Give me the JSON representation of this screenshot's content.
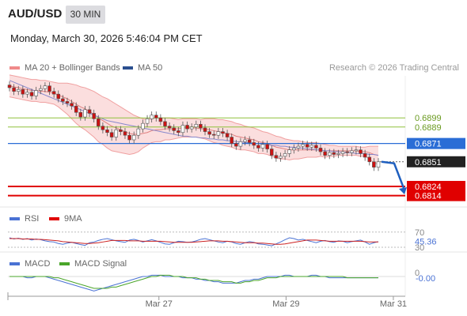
{
  "header": {
    "symbol": "AUD/USD",
    "timeframe": "30 MIN",
    "datetime": "Monday, March 30, 2026 5:46:04 PM CET",
    "credit": "Research © 2026 Trading Central"
  },
  "legend": {
    "bollinger_label": "MA 20 + Bollinger Bands",
    "ma50_label": "MA 50",
    "rsi_label": "RSI",
    "rsi_ma_label": "9MA",
    "macd_label": "MACD",
    "macd_signal_label": "MACD Signal"
  },
  "colors": {
    "bull": "#ffffff",
    "bear": "#cc1111",
    "bollinger": "#f0a0a0",
    "bollinger_fill": "#fbdede",
    "ma50": "#8888cc",
    "resistance": "#8fc13b",
    "pivot": "#2a6dd6",
    "support": "#e00000",
    "last": "#222222",
    "rsi": "#4a72d4",
    "rsi_ma": "#cc2222",
    "macd": "#4a72d4",
    "macd_signal": "#4aa52a"
  },
  "chart_data": [
    {
      "type": "candlestick",
      "title": "AUD/USD 30 MIN",
      "ylim": [
        0.6805,
        0.6945
      ],
      "x_ticks": [
        "Mar 27",
        "Mar 29",
        "Mar 31"
      ],
      "levels": [
        {
          "name": "resistance-2",
          "value": 0.6899,
          "label": "0.6899"
        },
        {
          "name": "resistance-1",
          "value": 0.6889,
          "label": "0.6889"
        },
        {
          "name": "pivot",
          "value": 0.6871,
          "label": "0.6871"
        },
        {
          "name": "support-1",
          "value": 0.6824,
          "label": "0.6824"
        },
        {
          "name": "support-2",
          "value": 0.6814,
          "label": "0.6814"
        }
      ],
      "last_price": {
        "value": 0.6851,
        "label": "0.6851"
      },
      "projection": {
        "from": 0.6851,
        "to": 0.6824
      },
      "closes": [
        0.6932,
        0.6928,
        0.693,
        0.6925,
        0.6927,
        0.6923,
        0.6929,
        0.6931,
        0.6934,
        0.6928,
        0.6925,
        0.692,
        0.6917,
        0.6915,
        0.6912,
        0.6905,
        0.69,
        0.6908,
        0.6904,
        0.6898,
        0.689,
        0.6886,
        0.6883,
        0.6878,
        0.6886,
        0.6884,
        0.688,
        0.6875,
        0.688,
        0.6887,
        0.6893,
        0.6898,
        0.6902,
        0.6899,
        0.6895,
        0.689,
        0.6888,
        0.6885,
        0.6883,
        0.6891,
        0.6887,
        0.6889,
        0.6892,
        0.6888,
        0.6884,
        0.6881,
        0.688,
        0.6884,
        0.6882,
        0.6878,
        0.6871,
        0.6868,
        0.6873,
        0.6875,
        0.6872,
        0.6869,
        0.6866,
        0.687,
        0.6865,
        0.6858,
        0.6855,
        0.6857,
        0.686,
        0.6864,
        0.6866,
        0.6868,
        0.687,
        0.6867,
        0.6869,
        0.6866,
        0.6862,
        0.6858,
        0.6861,
        0.6859,
        0.686,
        0.6862,
        0.6861,
        0.6863,
        0.6864,
        0.686,
        0.6856,
        0.6851,
        0.6845,
        0.6851
      ],
      "ma20": [
        0.6934,
        0.6933,
        0.6932,
        0.6931,
        0.693,
        0.6929,
        0.6929,
        0.6928,
        0.6928,
        0.6927,
        0.6926,
        0.6924,
        0.6922,
        0.692,
        0.6917,
        0.6914,
        0.6911,
        0.6909,
        0.6906,
        0.6903,
        0.6899,
        0.6896,
        0.6893,
        0.689,
        0.6888,
        0.6886,
        0.6884,
        0.6882,
        0.6881,
        0.6881,
        0.6882,
        0.6883,
        0.6885,
        0.6886,
        0.6886,
        0.6887,
        0.6887,
        0.6887,
        0.6887,
        0.6888,
        0.6888,
        0.6888,
        0.6888,
        0.6887,
        0.6887,
        0.6886,
        0.6885,
        0.6884,
        0.6883,
        0.6882,
        0.6881,
        0.6879,
        0.6878,
        0.6877,
        0.6876,
        0.6875,
        0.6873,
        0.6872,
        0.6871,
        0.6869,
        0.6867,
        0.6866,
        0.6865,
        0.6864,
        0.6864,
        0.6864,
        0.6864,
        0.6864,
        0.6864,
        0.6864,
        0.6864,
        0.6863,
        0.6863,
        0.6863,
        0.6863,
        0.6863,
        0.6863,
        0.6863,
        0.6863,
        0.6862,
        0.6862,
        0.6861,
        0.6859,
        0.6858
      ],
      "band_width": [
        0.0012,
        0.0012,
        0.0012,
        0.0012,
        0.0012,
        0.0012,
        0.0012,
        0.0012,
        0.0012,
        0.0012,
        0.0012,
        0.0013,
        0.0015,
        0.0017,
        0.0019,
        0.0021,
        0.0022,
        0.0023,
        0.0024,
        0.0025,
        0.0026,
        0.0026,
        0.0027,
        0.0027,
        0.0026,
        0.0025,
        0.0024,
        0.0023,
        0.0021,
        0.0019,
        0.0016,
        0.0014,
        0.0013,
        0.0013,
        0.0013,
        0.0012,
        0.0012,
        0.0011,
        0.001,
        0.001,
        0.001,
        0.001,
        0.001,
        0.001,
        0.0011,
        0.0012,
        0.0013,
        0.0013,
        0.0014,
        0.0014,
        0.0014,
        0.0014,
        0.0014,
        0.0013,
        0.0013,
        0.0013,
        0.0013,
        0.0012,
        0.0012,
        0.0012,
        0.0012,
        0.0012,
        0.0011,
        0.0011,
        0.001,
        0.001,
        0.0009,
        0.0008,
        0.0008,
        0.0008,
        0.0007,
        0.0007,
        0.0006,
        0.0006,
        0.0005,
        0.0005,
        0.0005,
        0.0005,
        0.0005,
        0.0005,
        0.0005,
        0.0007,
        0.0009,
        0.001
      ],
      "ma50": [
        0.694,
        0.6938,
        0.6936,
        0.6934,
        0.6932,
        0.693,
        0.6928,
        0.6926,
        0.6924,
        0.6922,
        0.692,
        0.6918,
        0.6916,
        0.6914,
        0.6912,
        0.691,
        0.6908,
        0.6906,
        0.6904,
        0.6902,
        0.69,
        0.6898,
        0.6896,
        0.6895,
        0.6894,
        0.6893,
        0.6892,
        0.6891,
        0.689,
        0.6889,
        0.6888,
        0.6887,
        0.6886,
        0.6885,
        0.6884,
        0.6883,
        0.6882,
        0.6881,
        0.688,
        0.6879,
        0.6879,
        0.6878,
        0.6878,
        0.6877,
        0.6877,
        0.6876,
        0.6876,
        0.6875,
        0.6875,
        0.6874,
        0.6874,
        0.6873,
        0.6873,
        0.6872,
        0.6872,
        0.6871,
        0.6871,
        0.687,
        0.687,
        0.6869,
        0.6869,
        0.6868,
        0.6868,
        0.6867,
        0.6867,
        0.6866,
        0.6866,
        0.6865,
        0.6865,
        0.6864,
        0.6864,
        0.6863,
        0.6863,
        0.6862,
        0.6862,
        0.6861,
        0.6861,
        0.6861,
        0.686,
        0.686,
        0.686,
        0.6859,
        0.6859,
        0.6858
      ]
    },
    {
      "type": "line",
      "title": "RSI",
      "ylim": [
        28,
        80
      ],
      "ticks": [
        {
          "value": 70,
          "label": "70"
        },
        {
          "value": 30,
          "label": "30"
        }
      ],
      "last": {
        "value": 45.36,
        "label": "45.36"
      },
      "series": [
        {
          "name": "RSI",
          "values": [
            55,
            52,
            54,
            51,
            53,
            49,
            52,
            50,
            47,
            45,
            44,
            40,
            38,
            41,
            43,
            40,
            37,
            35,
            42,
            44,
            48,
            51,
            53,
            50,
            47,
            45,
            43,
            49,
            51,
            48,
            44,
            47,
            50,
            47,
            43,
            39,
            38,
            42,
            46,
            45,
            43,
            44,
            47,
            51,
            53,
            50,
            47,
            44,
            42,
            46,
            44,
            40,
            38,
            42,
            45,
            43,
            39,
            38,
            36,
            34,
            39,
            44,
            50,
            55,
            53,
            49,
            51,
            48,
            45,
            42,
            46,
            48,
            45,
            43,
            47,
            46,
            42,
            45,
            47,
            49,
            44,
            38,
            42,
            45
          ]
        },
        {
          "name": "9MA",
          "values": [
            53,
            53,
            53,
            52,
            52,
            52,
            51,
            51,
            50,
            49,
            48,
            47,
            45,
            44,
            43,
            42,
            41,
            40,
            40,
            41,
            42,
            44,
            46,
            48,
            48,
            48,
            48,
            47,
            47,
            47,
            46,
            46,
            46,
            46,
            46,
            45,
            44,
            43,
            43,
            43,
            43,
            43,
            44,
            45,
            46,
            47,
            47,
            47,
            46,
            46,
            45,
            44,
            43,
            42,
            42,
            42,
            41,
            41,
            40,
            39,
            38,
            38,
            39,
            41,
            43,
            45,
            47,
            49,
            49,
            49,
            48,
            47,
            46,
            46,
            46,
            46,
            46,
            46,
            46,
            46,
            45,
            44,
            44,
            44
          ]
        }
      ]
    },
    {
      "type": "line",
      "title": "MACD",
      "ylim": [
        -0.0012,
        0.0006
      ],
      "ticks": [
        {
          "value": 0,
          "label": "0"
        }
      ],
      "last": {
        "value": 0,
        "label": "-0.00"
      },
      "x_ticks": [
        "Mar 27",
        "Mar 29",
        "Mar 31"
      ],
      "series": [
        {
          "name": "MACD",
          "values": [
            0.0,
            0.0,
            0.0,
            0.0,
            -0.0001,
            -0.0001,
            0.0,
            0.0,
            0.0,
            -0.0001,
            -0.0002,
            -0.0003,
            -0.0004,
            -0.0005,
            -0.0006,
            -0.0007,
            -0.0008,
            -0.0009,
            -0.001,
            -0.0011,
            -0.001,
            -0.0009,
            -0.0008,
            -0.0007,
            -0.0006,
            -0.0005,
            -0.0004,
            -0.0003,
            -0.0002,
            -0.0001,
            0.0,
            0.0,
            0.0001,
            0.0001,
            0.0001,
            0.0,
            0.0,
            0.0,
            0.0,
            -0.0001,
            -0.0001,
            -0.0001,
            -0.0002,
            -0.0002,
            -0.0003,
            -0.0003,
            -0.0004,
            -0.0004,
            -0.0005,
            -0.0005,
            -0.0005,
            -0.0005,
            -0.0004,
            -0.0003,
            -0.0003,
            -0.0002,
            -0.0002,
            -0.0001,
            0.0,
            0.0,
            0.0,
            0.0,
            0.0001,
            0.0001,
            0.0,
            0.0,
            0.0,
            0.0,
            0.0001,
            0.0001,
            0.0,
            0.0,
            -0.0001,
            -0.0001,
            -0.0001,
            -0.0001,
            -0.0001,
            -0.0001,
            -0.0001,
            -0.0001,
            -0.0001,
            -0.0001,
            -0.0001,
            -0.0001
          ]
        },
        {
          "name": "MACD Signal",
          "values": [
            0.0,
            0.0,
            0.0,
            0.0,
            0.0,
            0.0,
            0.0,
            0.0,
            0.0,
            0.0,
            -0.0001,
            -0.0001,
            -0.0002,
            -0.0003,
            -0.0004,
            -0.0005,
            -0.0006,
            -0.0007,
            -0.0008,
            -0.0009,
            -0.0009,
            -0.0009,
            -0.0009,
            -0.0008,
            -0.0008,
            -0.0007,
            -0.0006,
            -0.0005,
            -0.0004,
            -0.0003,
            -0.0002,
            -0.0001,
            0.0,
            0.0,
            0.0001,
            0.0001,
            0.0001,
            0.0,
            0.0,
            0.0,
            -0.0001,
            -0.0001,
            -0.0001,
            -0.0002,
            -0.0002,
            -0.0003,
            -0.0003,
            -0.0003,
            -0.0004,
            -0.0004,
            -0.0004,
            -0.0005,
            -0.0005,
            -0.0004,
            -0.0004,
            -0.0003,
            -0.0003,
            -0.0002,
            -0.0001,
            -0.0001,
            -0.0001,
            0.0,
            0.0,
            0.0,
            0.0,
            0.0,
            0.0,
            0.0,
            0.0,
            0.0,
            0.0,
            0.0,
            0.0,
            0.0,
            0.0,
            0.0,
            -0.0001,
            -0.0001,
            -0.0001,
            -0.0001,
            -0.0001,
            -0.0001,
            -0.0001,
            -0.0001
          ]
        }
      ]
    }
  ]
}
